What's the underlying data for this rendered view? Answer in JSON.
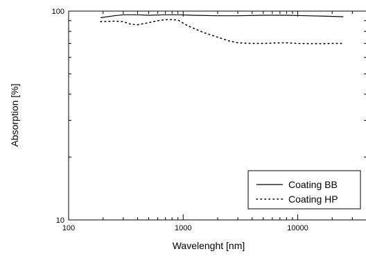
{
  "chart_data": {
    "type": "line",
    "xlabel": "Wavelenght [nm]",
    "ylabel": "Absorption [%]",
    "xscale": "log",
    "yscale": "log",
    "xlim": [
      100,
      40000
    ],
    "ylim": [
      10,
      100
    ],
    "x_ticks": [
      {
        "value": 100,
        "label": "100"
      },
      {
        "value": 1000,
        "label": "1000"
      },
      {
        "value": 10000,
        "label": "10000"
      }
    ],
    "y_ticks": [
      {
        "value": 10,
        "label": "10"
      },
      {
        "value": 100,
        "label": "100"
      }
    ],
    "grid": false,
    "legend_position": "bottom-right",
    "series": [
      {
        "name": "Coating BB",
        "style": "solid",
        "color": "#000000",
        "points": [
          [
            190,
            93.0
          ],
          [
            250,
            95.0
          ],
          [
            300,
            96.0
          ],
          [
            400,
            96.0
          ],
          [
            500,
            95.5
          ],
          [
            700,
            96.0
          ],
          [
            900,
            96.0
          ],
          [
            1200,
            95.5
          ],
          [
            2000,
            95.0
          ],
          [
            3000,
            95.0
          ],
          [
            5000,
            95.5
          ],
          [
            8000,
            95.5
          ],
          [
            12000,
            95.0
          ],
          [
            18000,
            94.5
          ],
          [
            25000,
            94.0
          ]
        ]
      },
      {
        "name": "Coating HP",
        "style": "dotted",
        "color": "#000000",
        "points": [
          [
            190,
            89.0
          ],
          [
            250,
            89.5
          ],
          [
            300,
            89.0
          ],
          [
            350,
            86.5
          ],
          [
            400,
            86.0
          ],
          [
            500,
            88.0
          ],
          [
            600,
            90.0
          ],
          [
            700,
            91.0
          ],
          [
            800,
            91.0
          ],
          [
            900,
            90.5
          ],
          [
            1100,
            85.0
          ],
          [
            1500,
            79.0
          ],
          [
            2000,
            75.0
          ],
          [
            2500,
            72.0
          ],
          [
            3000,
            70.5
          ],
          [
            4000,
            70.0
          ],
          [
            5000,
            70.0
          ],
          [
            7000,
            70.5
          ],
          [
            8000,
            70.5
          ],
          [
            10000,
            70.0
          ],
          [
            15000,
            69.8
          ],
          [
            20000,
            70.0
          ],
          [
            25000,
            70.0
          ]
        ]
      }
    ]
  }
}
